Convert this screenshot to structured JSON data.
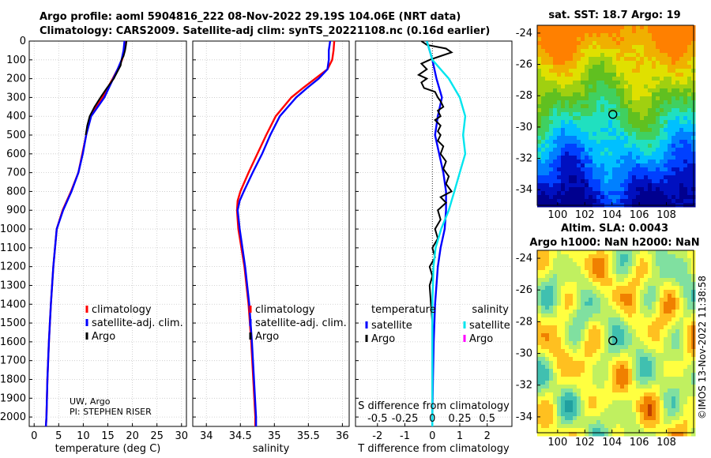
{
  "header": {
    "title_line1": "Argo profile: aoml 5904816_222 08-Nov-2022 29.19S 104.06E (NRT data)",
    "title_line2": "Climatology: CARS2009. Satellite-adj clim: synTS_20221108.nc (0.16d earlier)"
  },
  "sst_map": {
    "title": "sat. SST: 18.7 Argo: 19",
    "xticks": [
      "100",
      "102",
      "104",
      "106",
      "108"
    ],
    "yticks": [
      "-24",
      "-26",
      "-28",
      "-30",
      "-32",
      "-34"
    ],
    "xlim": [
      98.5,
      110
    ],
    "ylim": [
      -35,
      -23.5
    ],
    "argo_lon": 104.06,
    "argo_lat": -29.19
  },
  "sla_map": {
    "title_line1": "Altim. SLA: 0.0043",
    "title_line2": "Argo h1000: NaN h2000: NaN",
    "xticks": [
      "100",
      "102",
      "104",
      "106",
      "108"
    ],
    "yticks": [
      "-24",
      "-26",
      "-28",
      "-30",
      "-32",
      "-34"
    ],
    "xlim": [
      98.5,
      110
    ],
    "ylim": [
      -35,
      -23.5
    ],
    "argo_lon": 104.06,
    "argo_lat": -29.19
  },
  "footer": {
    "credit": "UW, Argo",
    "pi": "PI: STEPHEN RISER",
    "watermark": "©IMOS 13-Nov-2022 11:38:58"
  },
  "colors": {
    "climatology": "#ff0000",
    "satellite": "#0000ff",
    "argo": "#000000",
    "salinity_satellite": "#00e5ee",
    "salinity_argo": "#ff00ff"
  },
  "chart_data": [
    {
      "type": "line",
      "panel": "temperature",
      "xlabel": "temperature (deg C)",
      "ylabel": "",
      "xlim": [
        -1,
        31
      ],
      "ylim": [
        2050,
        0
      ],
      "xticks": [
        0,
        5,
        10,
        15,
        20,
        25,
        30
      ],
      "yticks": [
        0,
        100,
        200,
        300,
        400,
        500,
        600,
        700,
        800,
        900,
        1000,
        1100,
        1200,
        1300,
        1400,
        1500,
        1600,
        1700,
        1800,
        1900,
        2000
      ],
      "grid": true,
      "legend": [
        "climatology",
        "satellite-adj. clim.",
        "Argo"
      ],
      "series": [
        {
          "name": "climatology",
          "depth": [
            0,
            50,
            100,
            150,
            200,
            300,
            400,
            500,
            600,
            700,
            800,
            900,
            1000,
            1200,
            1400,
            1600,
            1800,
            2000,
            2050
          ],
          "values": [
            18.6,
            18.4,
            17.9,
            17.0,
            16.0,
            13.9,
            11.4,
            10.6,
            9.8,
            9.0,
            7.5,
            5.8,
            4.6,
            3.9,
            3.4,
            3.0,
            2.7,
            2.5,
            2.4
          ]
        },
        {
          "name": "satellite-adj. clim.",
          "depth": [
            0,
            50,
            100,
            150,
            200,
            300,
            400,
            500,
            600,
            700,
            800,
            900,
            1000,
            1200,
            1400,
            1600,
            1800,
            2000,
            2050
          ],
          "values": [
            18.4,
            18.2,
            17.8,
            17.0,
            16.1,
            14.3,
            11.6,
            10.6,
            9.9,
            9.0,
            7.6,
            5.9,
            4.6,
            3.9,
            3.4,
            3.0,
            2.7,
            2.5,
            2.4
          ]
        },
        {
          "name": "Argo",
          "depth": [
            0,
            20,
            50,
            80,
            100,
            130,
            160,
            200,
            250,
            300,
            350,
            400,
            450,
            500
          ],
          "values": [
            18.8,
            18.7,
            18.5,
            18.2,
            17.8,
            17.6,
            17.0,
            16.2,
            14.8,
            13.5,
            12.3,
            11.3,
            10.8,
            10.5
          ]
        }
      ]
    },
    {
      "type": "line",
      "panel": "salinity",
      "xlabel": "salinity",
      "ylabel": "",
      "xlim": [
        33.8,
        36.1
      ],
      "ylim": [
        2050,
        0
      ],
      "xticks": [
        34,
        34.5,
        35,
        35.5,
        36
      ],
      "grid": true,
      "legend": [
        "climatology",
        "satellite-adj. clim.",
        "Argo"
      ],
      "series": [
        {
          "name": "climatology",
          "depth": [
            0,
            50,
            100,
            150,
            200,
            250,
            300,
            400,
            500,
            600,
            700,
            800,
            850,
            900,
            1000,
            1200,
            1400,
            1600,
            1800,
            2000,
            2050
          ],
          "values": [
            35.88,
            35.87,
            35.85,
            35.78,
            35.6,
            35.42,
            35.25,
            35.02,
            34.88,
            34.75,
            34.62,
            34.5,
            34.46,
            34.45,
            34.47,
            34.56,
            34.62,
            34.66,
            34.69,
            34.72,
            34.72
          ]
        },
        {
          "name": "satellite-adj. clim.",
          "depth": [
            0,
            50,
            100,
            150,
            200,
            250,
            300,
            400,
            500,
            600,
            700,
            800,
            850,
            900,
            1000,
            1200,
            1400,
            1600,
            1800,
            2000,
            2050
          ],
          "values": [
            35.82,
            35.8,
            35.8,
            35.78,
            35.65,
            35.48,
            35.32,
            35.08,
            34.94,
            34.82,
            34.68,
            34.55,
            34.49,
            34.46,
            34.49,
            34.57,
            34.63,
            34.67,
            34.7,
            34.73,
            34.73
          ]
        },
        {
          "name": "Argo",
          "depth": [],
          "values": []
        }
      ]
    },
    {
      "type": "line",
      "panel": "difference",
      "xlabel": "T difference from climatology",
      "x2label": "S difference from climatology",
      "xlim": [
        -2.8,
        2.9
      ],
      "ylim": [
        2050,
        0
      ],
      "xticks": [
        -2,
        -1,
        0,
        1,
        2
      ],
      "x2ticks": [
        "-0.5",
        "-0.25",
        "0",
        "0.25",
        "0.5"
      ],
      "grid": true,
      "legend_headers": [
        "temperature",
        "salinity"
      ],
      "legend": [
        "satellite",
        "Argo",
        "satellite",
        "Argo"
      ],
      "series": [
        {
          "name": "temperature satellite",
          "depth": [
            0,
            50,
            100,
            200,
            300,
            400,
            500,
            600,
            700,
            800,
            900,
            1000,
            1100,
            1200,
            1400,
            1600,
            1800,
            2000,
            2050
          ],
          "values": [
            -0.2,
            -0.1,
            0.0,
            0.15,
            0.35,
            0.2,
            0.1,
            0.25,
            0.4,
            0.5,
            0.5,
            0.45,
            0.3,
            0.2,
            0.1,
            0.05,
            0.02,
            0.0,
            0.0
          ]
        },
        {
          "name": "temperature Argo",
          "depth": [
            0,
            20,
            40,
            60,
            80,
            100,
            120,
            150,
            180,
            200,
            220,
            250,
            270,
            300,
            320,
            350,
            370,
            400,
            420,
            450,
            480,
            500,
            530,
            560,
            600,
            640,
            680,
            720,
            760,
            800,
            830,
            860,
            900,
            950,
            1000,
            1050,
            1100,
            1150,
            1200,
            1250,
            1300,
            1400,
            1500,
            1600,
            1800,
            2000
          ],
          "values": [
            -0.4,
            -0.2,
            0.5,
            0.7,
            0.3,
            -0.1,
            -0.4,
            -0.2,
            -0.5,
            -0.2,
            -0.4,
            -0.3,
            0.1,
            0.2,
            0.3,
            0.4,
            0.2,
            0.3,
            0.1,
            0.3,
            0.2,
            0.3,
            0.2,
            0.4,
            0.3,
            0.5,
            0.4,
            0.6,
            0.5,
            0.7,
            0.3,
            0.5,
            0.2,
            0.3,
            0.1,
            0.2,
            0.0,
            0.1,
            -0.1,
            0.0,
            -0.1,
            -0.05,
            0.0,
            0.0,
            0.0,
            0.0
          ]
        },
        {
          "name": "salinity satellite",
          "depth": [
            0,
            100,
            200,
            300,
            400,
            500,
            600,
            700,
            800,
            900,
            1000,
            1100,
            1200,
            1400,
            1600,
            1800,
            2000,
            2050
          ],
          "values": [
            -0.05,
            0.0,
            0.15,
            0.25,
            0.3,
            0.28,
            0.3,
            0.25,
            0.2,
            0.15,
            0.08,
            0.03,
            0.01,
            0.0,
            0.0,
            0.0,
            0.0,
            0.0
          ]
        },
        {
          "name": "salinity Argo",
          "depth": [],
          "values": []
        }
      ]
    }
  ]
}
